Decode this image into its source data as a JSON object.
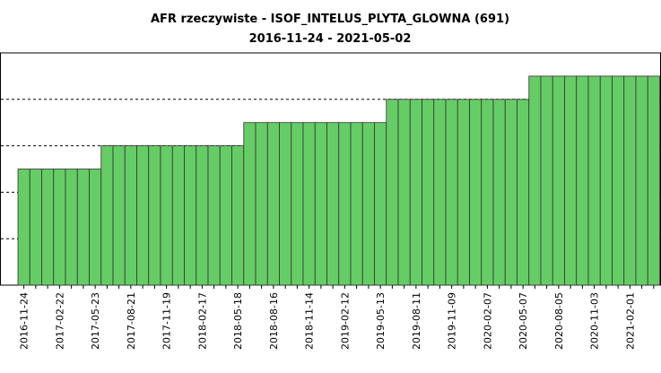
{
  "chart_data": {
    "type": "bar",
    "title": "AFR rzeczywiste - ISOF_INTELUS_PLYTA_GLOWNA (691)",
    "subtitle": "2016-11-24 - 2021-05-02",
    "categories": [
      "2016-11-24",
      null,
      null,
      "2017-02-22",
      null,
      null,
      "2017-05-23",
      null,
      null,
      "2017-08-21",
      null,
      null,
      "2017-11-19",
      null,
      null,
      "2018-02-17",
      null,
      null,
      "2018-05-18",
      null,
      null,
      "2018-08-16",
      null,
      null,
      "2018-11-14",
      null,
      null,
      "2019-02-12",
      null,
      null,
      "2019-05-13",
      null,
      null,
      "2019-08-11",
      null,
      null,
      "2019-11-09",
      null,
      null,
      "2020-02-07",
      null,
      null,
      "2020-05-07",
      null,
      null,
      "2020-08-05",
      null,
      null,
      "2020-11-03",
      null,
      null,
      "2021-02-01",
      null,
      null
    ],
    "values": [
      2.5,
      2.5,
      2.5,
      2.5,
      2.5,
      2.5,
      2.5,
      3,
      3,
      3,
      3,
      3,
      3,
      3,
      3,
      3,
      3,
      3,
      3,
      3.5,
      3.5,
      3.5,
      3.5,
      3.5,
      3.5,
      3.5,
      3.5,
      3.5,
      3.5,
      3.5,
      3.5,
      4,
      4,
      4,
      4,
      4,
      4,
      4,
      4,
      4,
      4,
      4,
      4,
      4.5,
      4.5,
      4.5,
      4.5,
      4.5,
      4.5,
      4.5,
      4.5,
      4.5,
      4.5,
      4.5
    ],
    "color": "#66cc66",
    "ylim": [
      0,
      5
    ],
    "yticks": [
      1,
      2,
      3,
      4
    ],
    "grid": true
  }
}
